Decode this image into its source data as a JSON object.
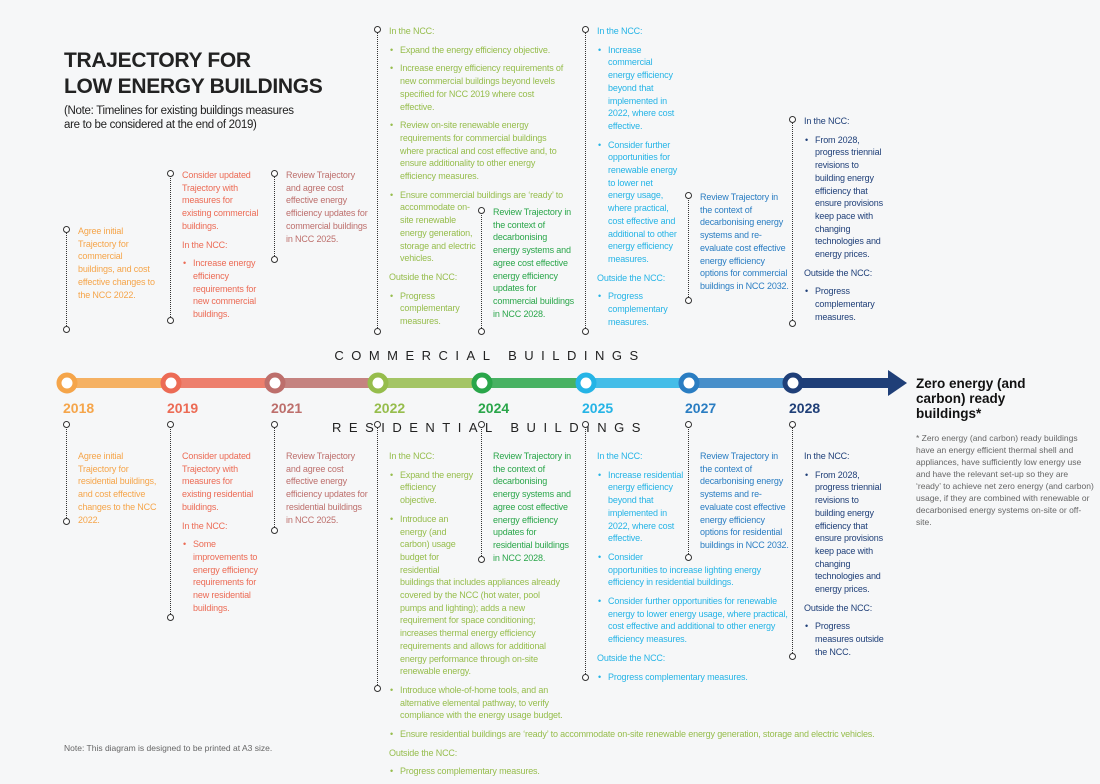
{
  "header": {
    "title_line1": "TRAJECTORY FOR",
    "title_line2": "LOW ENERGY BUILDINGS",
    "note": "(Note: Timelines for existing buildings measures are to be considered at the end of 2019)"
  },
  "commercial_label": "COMMERCIAL BUILDINGS",
  "residential_label": "RESIDENTIAL BUILDINGS",
  "end_label": "Zero energy (and carbon) ready buildings*",
  "footnote": "* Zero energy (and carbon) ready buildings have an energy efficient thermal shell and appliances, have sufficiently low energy use and have the relevant set-up so they are ‘ready’ to achieve net zero energy (and carbon) usage, if they are combined with renewable or decarbonised energy systems on-site or off-site.",
  "print_note": "Note: This diagram is designed to be printed at A3 size.",
  "timeline": [
    {
      "year": "2018",
      "color": "#f5a54a",
      "commercial": [
        {
          "text": "Agree initial Trajectory for commercial buildings, and cost effective changes to the NCC 2022.",
          "bullet": false
        }
      ],
      "residential": [
        {
          "text": "Agree initial Trajectory for residential buildings, and cost effective changes to the NCC 2022.",
          "bullet": false
        }
      ]
    },
    {
      "year": "2019",
      "color": "#ec6b55",
      "commercial": [
        {
          "text": "Consider updated Trajectory with measures for existing commercial buildings.",
          "bullet": false
        },
        {
          "text": "In the NCC:",
          "bullet": false
        },
        {
          "text": "Increase energy efficiency requirements for new commercial buildings.",
          "bullet": true
        }
      ],
      "residential": [
        {
          "text": "Consider updated Trajectory with measures for existing residential buildings.",
          "bullet": false
        },
        {
          "text": "In the NCC:",
          "bullet": false
        },
        {
          "text": "Some improvements to energy efficiency requirements for new residential buildings.",
          "bullet": true
        }
      ]
    },
    {
      "year": "2021",
      "color": "#bd6f6c",
      "commercial": [
        {
          "text": "Review Trajectory and agree cost effective energy efficiency updates for commercial buildings in NCC 2025.",
          "bullet": false
        }
      ],
      "residential": [
        {
          "text": "Review Trajectory and agree cost effective energy efficiency updates for residential buildings in NCC 2025.",
          "bullet": false
        }
      ]
    },
    {
      "year": "2022",
      "color": "#96bd4c",
      "commercial": [
        {
          "text": "In the NCC:",
          "bullet": false
        },
        {
          "text": "Expand the energy efficiency objective.",
          "bullet": true
        },
        {
          "text": "Increase energy efficiency requirements of new commercial buildings beyond levels specified for NCC 2019 where cost effective.",
          "bullet": true
        },
        {
          "text": "Review on-site renewable energy requirements for commercial buildings where practical and cost effective and, to ensure additionality to other energy efficiency measures.",
          "bullet": true
        },
        {
          "text": "Ensure commercial buildings are ‘ready’ to accommodate on-site renewable energy generation, storage and electric vehicles.",
          "bullet": true
        },
        {
          "text": "Outside the NCC:",
          "bullet": false
        },
        {
          "text": "Progress complementary measures.",
          "bullet": true
        }
      ],
      "residential": [
        {
          "text": "In the NCC:",
          "bullet": false
        },
        {
          "text": "Expand the energy efficiency objective.",
          "bullet": true
        },
        {
          "text": "Introduce an energy (and carbon) usage budget for residential buildings that includes appliances already covered by the NCC (hot water, pool pumps and lighting); adds a new requirement for space conditioning; increases thermal energy efficiency requirements and allows for additional energy performance through on-site renewable energy.",
          "bullet": true
        },
        {
          "text": "Introduce whole-of-home tools, and an alternative elemental pathway, to verify compliance with the energy usage budget.",
          "bullet": true
        },
        {
          "text": "Ensure residential buildings are ‘ready’ to accommodate on-site renewable energy generation, storage and electric vehicles.",
          "bullet": true
        },
        {
          "text": "Outside the NCC:",
          "bullet": false
        },
        {
          "text": "Progress complementary measures.",
          "bullet": true
        }
      ]
    },
    {
      "year": "2024",
      "color": "#2aa64a",
      "commercial": [
        {
          "text": "Review Trajectory in the context of decarbonising energy systems and agree cost effective energy efficiency updates for commercial buildings in NCC 2028.",
          "bullet": false
        }
      ],
      "residential": [
        {
          "text": "Review Trajectory in the context of decarbonising energy systems and agree cost effective energy efficiency updates for residential buildings in NCC 2028.",
          "bullet": false
        }
      ]
    },
    {
      "year": "2025",
      "color": "#25b4e6",
      "commercial": [
        {
          "text": "In the NCC:",
          "bullet": false
        },
        {
          "text": "Increase commercial energy efficiency beyond that implemented in 2022, where cost effective.",
          "bullet": true
        },
        {
          "text": "Consider further opportunities for renewable energy to lower net energy usage, where practical, cost effective and additional to other energy efficiency measures.",
          "bullet": true
        },
        {
          "text": "Outside the NCC:",
          "bullet": false
        },
        {
          "text": "Progress complementary measures.",
          "bullet": true
        }
      ],
      "residential": [
        {
          "text": "In the NCC:",
          "bullet": false
        },
        {
          "text": "Increase residential energy efficiency beyond that implemented in 2022, where cost effective.",
          "bullet": true
        },
        {
          "text": "Consider opportunities to increase lighting energy efficiency in residential buildings.",
          "bullet": true
        },
        {
          "text": "Consider further opportunities for renewable energy to lower energy usage, where practical, cost effective and additional to other energy efficiency measures.",
          "bullet": true
        },
        {
          "text": "Outside the NCC:",
          "bullet": false
        },
        {
          "text": "Progress complementary measures.",
          "bullet": true
        }
      ]
    },
    {
      "year": "2027",
      "color": "#2a7dc2",
      "commercial": [
        {
          "text": "Review Trajectory in the context of decarbonising energy systems and re-evaluate cost effective energy efficiency options for commercial buildings in NCC 2032.",
          "bullet": false
        }
      ],
      "residential": [
        {
          "text": "Review Trajectory in the context of decarbonising energy systems and re-evaluate cost effective energy efficiency options for residential buildings in NCC 2032.",
          "bullet": false
        }
      ]
    },
    {
      "year": "2028",
      "color": "#1f3f78",
      "commercial": [
        {
          "text": "In the NCC:",
          "bullet": false
        },
        {
          "text": "From 2028, progress triennial revisions to building energy efficiency that ensure provisions keep pace with changing technologies and energy prices.",
          "bullet": true
        },
        {
          "text": "Outside the NCC:",
          "bullet": false
        },
        {
          "text": "Progress complementary measures.",
          "bullet": true
        }
      ],
      "residential": [
        {
          "text": "In the NCC:",
          "bullet": false
        },
        {
          "text": "From 2028, progress triennial revisions to building energy efficiency that ensure provisions keep pace with changing technologies and energy prices.",
          "bullet": true
        },
        {
          "text": "Outside the NCC:",
          "bullet": false
        },
        {
          "text": "Progress measures outside the NCC.",
          "bullet": true
        }
      ]
    }
  ]
}
